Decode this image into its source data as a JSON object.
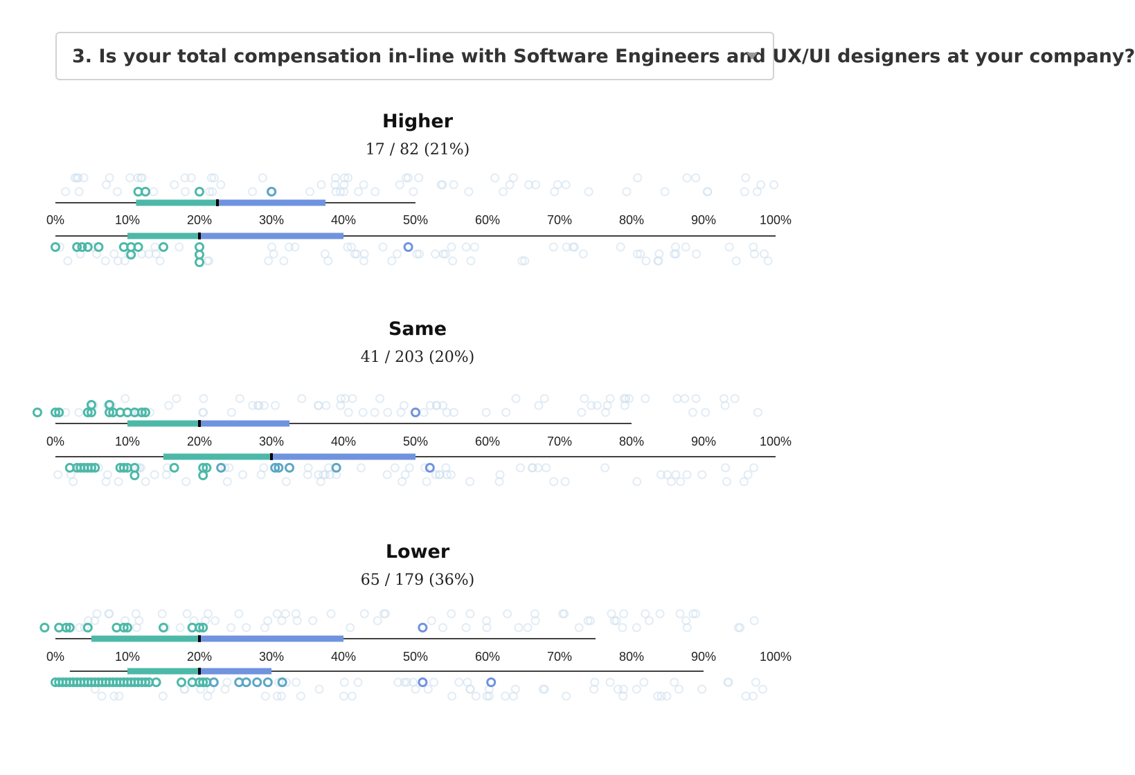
{
  "question_select": {
    "selected": "3. Is your total compensation in-line with Software Engineers and UX/UI designers at your company?",
    "caret_icon": "chevron-down-icon"
  },
  "colors": {
    "teal": "#4db8a8",
    "blue": "#6f93df",
    "black": "#000000",
    "faded": "#cfe0ee"
  },
  "chart_data": [
    {
      "type": "strip",
      "title": "Higher",
      "subtitle": "17 / 82 (21%)",
      "ticks": [
        "0%",
        "10%",
        "20%",
        "30%",
        "40%",
        "50%",
        "60%",
        "70%",
        "80%",
        "90%",
        "100%"
      ],
      "xlim": [
        0,
        100
      ],
      "top_row": {
        "range": [
          0,
          50
        ],
        "quartiles": [
          11.2,
          22.5,
          37.5
        ],
        "points": [
          11.5,
          12.5,
          20,
          30
        ]
      },
      "bottom_row": {
        "range": [
          0,
          100
        ],
        "quartiles": [
          10,
          20,
          40
        ],
        "points": [
          0,
          3,
          3.7,
          4.5,
          6,
          9.5,
          10.5,
          11.5,
          10.5,
          15,
          20,
          20,
          20,
          49
        ]
      }
    },
    {
      "type": "strip",
      "title": "Same",
      "subtitle": "41 / 203 (20%)",
      "ticks": [
        "0%",
        "10%",
        "20%",
        "30%",
        "40%",
        "50%",
        "60%",
        "70%",
        "80%",
        "90%",
        "100%"
      ],
      "xlim": [
        0,
        100
      ],
      "top_row": {
        "range": [
          0,
          80
        ],
        "quartiles": [
          10,
          20,
          32.5
        ],
        "points": [
          -2.5,
          0,
          0.5,
          4.5,
          5,
          5,
          7.5,
          7.5,
          8,
          9,
          10,
          11,
          12,
          12.5,
          50
        ]
      },
      "bottom_row": {
        "range": [
          0,
          100
        ],
        "quartiles": [
          15,
          30,
          50
        ],
        "points": [
          2,
          3,
          3.5,
          4,
          4.5,
          5,
          5.5,
          9,
          9.5,
          10,
          11,
          11,
          16.5,
          20.5,
          20.5,
          21,
          23,
          30.5,
          31,
          32.5,
          39,
          52
        ]
      }
    },
    {
      "type": "strip",
      "title": "Lower",
      "subtitle": "65 / 179 (36%)",
      "ticks": [
        "0%",
        "10%",
        "20%",
        "30%",
        "40%",
        "50%",
        "60%",
        "70%",
        "80%",
        "90%",
        "100%"
      ],
      "xlim": [
        0,
        100
      ],
      "top_row": {
        "range": [
          0,
          75
        ],
        "quartiles": [
          5,
          20,
          40
        ],
        "points": [
          -1.5,
          0.5,
          1.5,
          2,
          4.5,
          8.5,
          9.5,
          10,
          15,
          19,
          20,
          20.5,
          51
        ]
      },
      "bottom_row": {
        "range": [
          2,
          90
        ],
        "quartiles": [
          10,
          20,
          30
        ],
        "points": [
          0,
          0.5,
          1,
          1.5,
          2,
          2.5,
          3,
          3.5,
          4,
          4.5,
          5,
          5.5,
          6,
          6.5,
          7,
          7.5,
          8,
          8.5,
          9,
          9.5,
          10,
          10.5,
          11,
          11.5,
          12,
          12.5,
          13,
          14,
          17.5,
          19,
          20,
          20.5,
          21,
          22,
          25.5,
          26.5,
          28,
          29.5,
          31.5,
          51,
          60.5
        ]
      }
    }
  ]
}
